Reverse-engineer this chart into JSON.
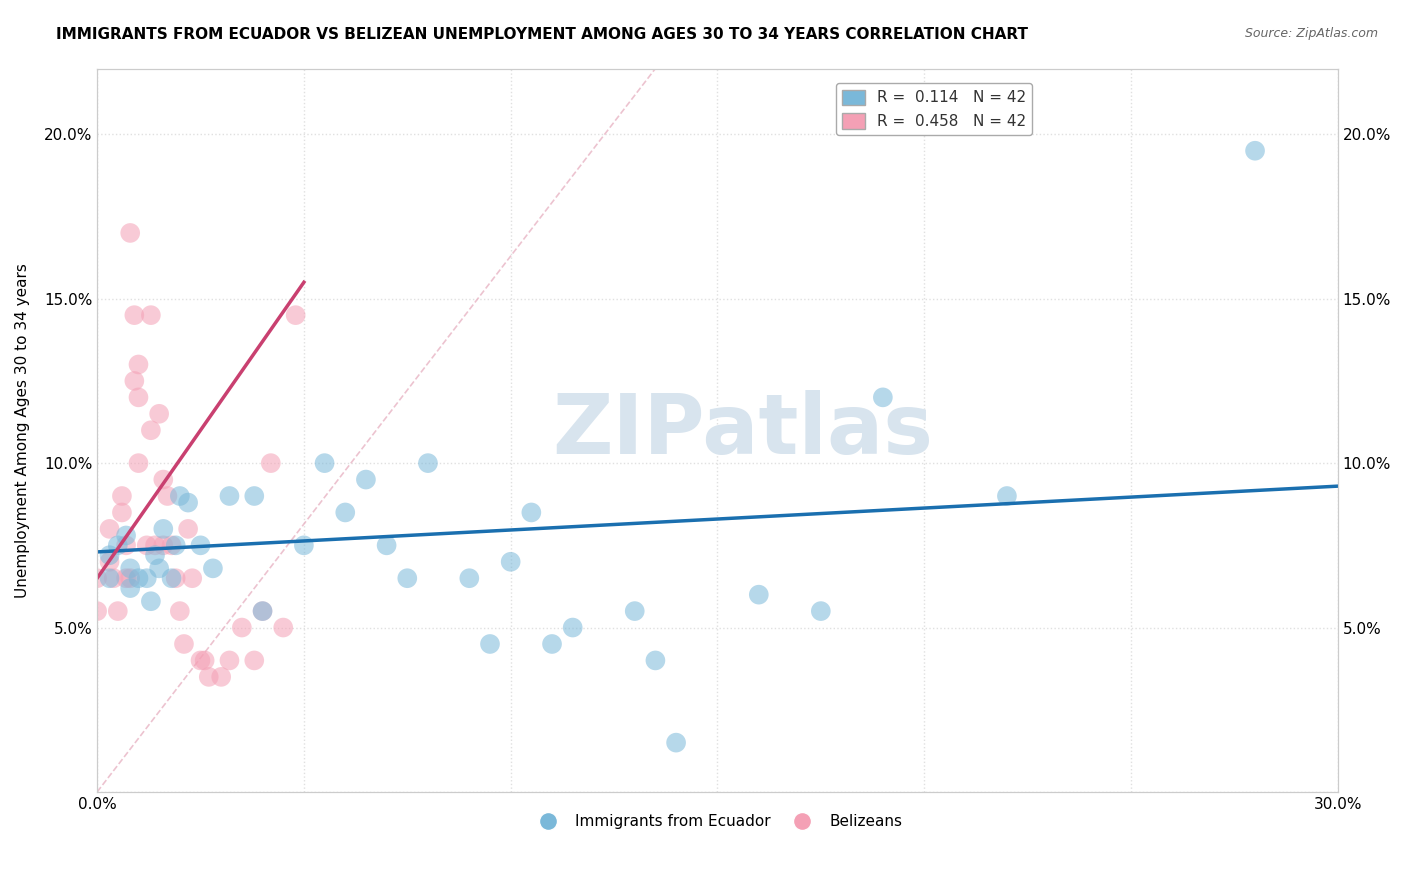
{
  "title": "IMMIGRANTS FROM ECUADOR VS BELIZEAN UNEMPLOYMENT AMONG AGES 30 TO 34 YEARS CORRELATION CHART",
  "source": "Source: ZipAtlas.com",
  "ylabel": "Unemployment Among Ages 30 to 34 years",
  "xlim": [
    0.0,
    0.3
  ],
  "ylim": [
    0.0,
    0.22
  ],
  "x_ticks": [
    0.0,
    0.05,
    0.1,
    0.15,
    0.2,
    0.25,
    0.3
  ],
  "x_tick_labels": [
    "0.0%",
    "",
    "",
    "",
    "",
    "",
    "30.0%"
  ],
  "y_ticks": [
    0.0,
    0.05,
    0.1,
    0.15,
    0.2
  ],
  "y_tick_labels_left": [
    "",
    "5.0%",
    "10.0%",
    "15.0%",
    "20.0%"
  ],
  "y_tick_labels_right": [
    "",
    "5.0%",
    "10.0%",
    "15.0%",
    "20.0%"
  ],
  "blue_color": "#7ab8d9",
  "pink_color": "#f4a0b5",
  "blue_line_color": "#1a6faf",
  "pink_line_color": "#c94070",
  "diag_line_color": "#e8b4c4",
  "watermark_color": "#d8e4ee",
  "legend_label1": "R =  0.114   N = 42",
  "legend_label2": "R =  0.458   N = 42",
  "blue_scatter_x": [
    0.003,
    0.003,
    0.005,
    0.007,
    0.008,
    0.008,
    0.01,
    0.012,
    0.013,
    0.014,
    0.015,
    0.016,
    0.018,
    0.019,
    0.02,
    0.022,
    0.025,
    0.028,
    0.032,
    0.038,
    0.04,
    0.05,
    0.055,
    0.06,
    0.065,
    0.07,
    0.075,
    0.08,
    0.09,
    0.095,
    0.1,
    0.105,
    0.11,
    0.115,
    0.13,
    0.135,
    0.14,
    0.16,
    0.175,
    0.19,
    0.22,
    0.28
  ],
  "blue_scatter_y": [
    0.072,
    0.065,
    0.075,
    0.078,
    0.068,
    0.062,
    0.065,
    0.065,
    0.058,
    0.072,
    0.068,
    0.08,
    0.065,
    0.075,
    0.09,
    0.088,
    0.075,
    0.068,
    0.09,
    0.09,
    0.055,
    0.075,
    0.1,
    0.085,
    0.095,
    0.075,
    0.065,
    0.1,
    0.065,
    0.045,
    0.07,
    0.085,
    0.045,
    0.05,
    0.055,
    0.04,
    0.015,
    0.06,
    0.055,
    0.12,
    0.09,
    0.195
  ],
  "pink_scatter_x": [
    0.0,
    0.0,
    0.003,
    0.003,
    0.004,
    0.005,
    0.006,
    0.006,
    0.007,
    0.007,
    0.008,
    0.008,
    0.009,
    0.009,
    0.01,
    0.01,
    0.01,
    0.012,
    0.013,
    0.013,
    0.014,
    0.015,
    0.016,
    0.016,
    0.017,
    0.018,
    0.019,
    0.02,
    0.021,
    0.022,
    0.023,
    0.025,
    0.026,
    0.027,
    0.03,
    0.032,
    0.035,
    0.038,
    0.04,
    0.042,
    0.045,
    0.048
  ],
  "pink_scatter_y": [
    0.065,
    0.055,
    0.08,
    0.07,
    0.065,
    0.055,
    0.09,
    0.085,
    0.075,
    0.065,
    0.065,
    0.17,
    0.145,
    0.125,
    0.1,
    0.13,
    0.12,
    0.075,
    0.145,
    0.11,
    0.075,
    0.115,
    0.095,
    0.075,
    0.09,
    0.075,
    0.065,
    0.055,
    0.045,
    0.08,
    0.065,
    0.04,
    0.04,
    0.035,
    0.035,
    0.04,
    0.05,
    0.04,
    0.055,
    0.1,
    0.05,
    0.145
  ],
  "blue_trend_x": [
    0.0,
    0.3
  ],
  "blue_trend_y": [
    0.073,
    0.093
  ],
  "pink_trend_x": [
    0.0,
    0.05
  ],
  "pink_trend_y": [
    0.065,
    0.155
  ],
  "diag_trend_x": [
    0.0,
    0.135
  ],
  "diag_trend_y": [
    0.0,
    0.22
  ],
  "grid_color": "#e0e0e0",
  "background_color": "#ffffff",
  "figsize": [
    14.06,
    8.92
  ],
  "dpi": 100
}
